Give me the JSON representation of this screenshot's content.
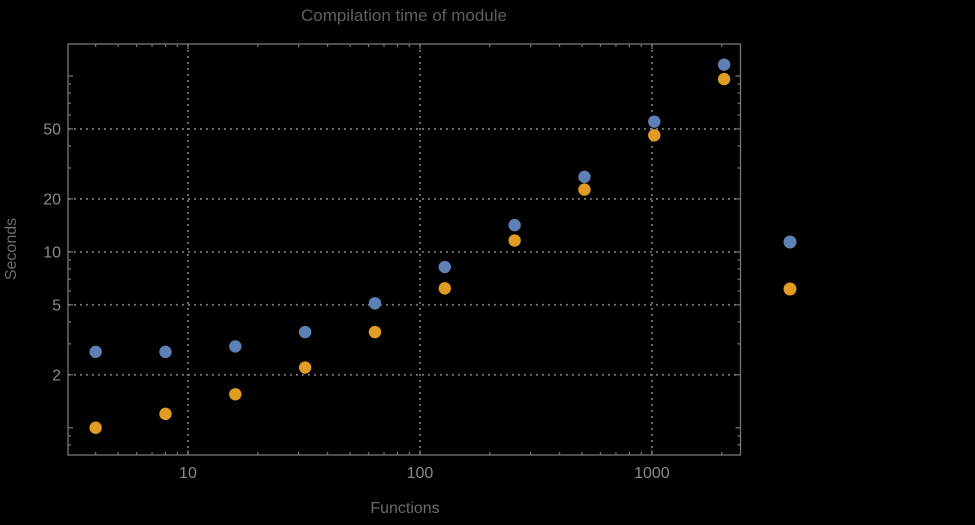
{
  "chart_data": {
    "type": "scatter",
    "title": "Compilation time of module",
    "xlabel": "Functions",
    "ylabel": "Seconds",
    "x_scale": "log",
    "y_scale": "log",
    "xlim": [
      3.04,
      2410
    ],
    "ylim": [
      0.7,
      152
    ],
    "x_ticks": [
      10,
      100,
      1000
    ],
    "y_ticks": [
      2,
      5,
      10,
      20,
      50
    ],
    "grid": "dotted",
    "legend_position": "right-outside",
    "x": [
      4,
      8,
      16,
      32,
      64,
      128,
      256,
      512,
      1024,
      2048
    ],
    "series": [
      {
        "name": "series-blue",
        "color": "#5e81b5",
        "values": [
          2.7,
          2.7,
          2.9,
          3.5,
          5.1,
          8.2,
          14.2,
          26.7,
          55,
          116
        ]
      },
      {
        "name": "series-orange",
        "color": "#e19c24",
        "values": [
          1.0,
          1.2,
          1.55,
          2.2,
          3.5,
          6.2,
          11.6,
          22.6,
          46,
          96
        ]
      }
    ],
    "legend_markers": [
      {
        "name": "legend-marker-blue",
        "color": "#5e81b5"
      },
      {
        "name": "legend-marker-orange",
        "color": "#e19c24"
      }
    ]
  },
  "colors": {
    "background": "#000000",
    "frame": "#777777",
    "grid": "#7e7e7e",
    "title": "#5f5f5f",
    "axis_label": "#6b6b6b",
    "tick_label": "#8a8a8a"
  }
}
